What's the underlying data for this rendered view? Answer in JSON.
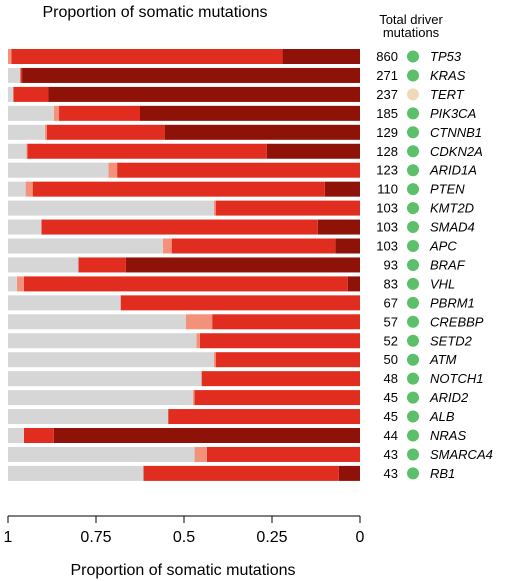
{
  "chart_data": {
    "type": "bar",
    "orientation": "horizontal",
    "stacked": true,
    "title": "Proportion of somatic mutations",
    "xlabel": "Proportion of somatic mutations",
    "right_header_line1": "Total driver",
    "right_header_line2": "mutations",
    "x_axis_reversed": true,
    "xlim": [
      1,
      0
    ],
    "x_ticks": [
      1,
      0.75,
      0.5,
      0.25,
      0
    ],
    "x_tick_labels": [
      "1",
      "0.75",
      "0.5",
      "0.25",
      "0"
    ],
    "segment_order_from_right": [
      "dark_red",
      "red",
      "salmon",
      "light_grey"
    ],
    "colors": {
      "dark_red": "#8e1208",
      "red": "#e02d20",
      "salmon": "#f4917a",
      "light_grey": "#d6d6d6",
      "dot_green": "#5cbf6a",
      "dot_beige": "#f0d9b8"
    },
    "genes": [
      {
        "gene": "TP53",
        "total": "860",
        "dot": "dot_green",
        "dark_red": 0.22,
        "red": 0.77,
        "salmon": 0.01,
        "light_grey": 0.0
      },
      {
        "gene": "KRAS",
        "total": "271",
        "dot": "dot_green",
        "dark_red": 0.96,
        "red": 0.005,
        "salmon": 0.0,
        "light_grey": 0.035
      },
      {
        "gene": "TERT",
        "total": "237",
        "dot": "dot_beige",
        "dark_red": 0.885,
        "red": 0.1,
        "salmon": 0.0,
        "light_grey": 0.015
      },
      {
        "gene": "PIK3CA",
        "total": "185",
        "dot": "dot_green",
        "dark_red": 0.625,
        "red": 0.23,
        "salmon": 0.015,
        "light_grey": 0.13
      },
      {
        "gene": "CTNNB1",
        "total": "129",
        "dot": "dot_green",
        "dark_red": 0.555,
        "red": 0.335,
        "salmon": 0.005,
        "light_grey": 0.105
      },
      {
        "gene": "CDKN2A",
        "total": "128",
        "dot": "dot_green",
        "dark_red": 0.265,
        "red": 0.68,
        "salmon": 0.003,
        "light_grey": 0.052
      },
      {
        "gene": "ARID1A",
        "total": "123",
        "dot": "dot_green",
        "dark_red": 0.0,
        "red": 0.69,
        "salmon": 0.025,
        "light_grey": 0.285
      },
      {
        "gene": "PTEN",
        "total": "110",
        "dot": "dot_green",
        "dark_red": 0.1,
        "red": 0.83,
        "salmon": 0.02,
        "light_grey": 0.05
      },
      {
        "gene": "KMT2D",
        "total": "103",
        "dot": "dot_green",
        "dark_red": 0.0,
        "red": 0.41,
        "salmon": 0.005,
        "light_grey": 0.585
      },
      {
        "gene": "SMAD4",
        "total": "103",
        "dot": "dot_green",
        "dark_red": 0.12,
        "red": 0.785,
        "salmon": 0.0,
        "light_grey": 0.095
      },
      {
        "gene": "APC",
        "total": "103",
        "dot": "dot_green",
        "dark_red": 0.07,
        "red": 0.465,
        "salmon": 0.025,
        "light_grey": 0.44
      },
      {
        "gene": "BRAF",
        "total": "93",
        "dot": "dot_green",
        "dark_red": 0.665,
        "red": 0.135,
        "salmon": 0.0,
        "light_grey": 0.2
      },
      {
        "gene": "VHL",
        "total": "83",
        "dot": "dot_green",
        "dark_red": 0.035,
        "red": 0.92,
        "salmon": 0.02,
        "light_grey": 0.025
      },
      {
        "gene": "PBRM1",
        "total": "67",
        "dot": "dot_green",
        "dark_red": 0.0,
        "red": 0.68,
        "salmon": 0.0,
        "light_grey": 0.32
      },
      {
        "gene": "CREBBP",
        "total": "57",
        "dot": "dot_green",
        "dark_red": 0.0,
        "red": 0.42,
        "salmon": 0.075,
        "light_grey": 0.505
      },
      {
        "gene": "SETD2",
        "total": "52",
        "dot": "dot_green",
        "dark_red": 0.0,
        "red": 0.455,
        "salmon": 0.01,
        "light_grey": 0.535
      },
      {
        "gene": "ATM",
        "total": "50",
        "dot": "dot_green",
        "dark_red": 0.0,
        "red": 0.41,
        "salmon": 0.005,
        "light_grey": 0.585
      },
      {
        "gene": "NOTCH1",
        "total": "48",
        "dot": "dot_green",
        "dark_red": 0.0,
        "red": 0.45,
        "salmon": 0.0,
        "light_grey": 0.55
      },
      {
        "gene": "ARID2",
        "total": "45",
        "dot": "dot_green",
        "dark_red": 0.0,
        "red": 0.47,
        "salmon": 0.005,
        "light_grey": 0.525
      },
      {
        "gene": "ALB",
        "total": "45",
        "dot": "dot_green",
        "dark_red": 0.0,
        "red": 0.545,
        "salmon": 0.0,
        "light_grey": 0.455
      },
      {
        "gene": "NRAS",
        "total": "44",
        "dot": "dot_green",
        "dark_red": 0.87,
        "red": 0.085,
        "salmon": 0.0,
        "light_grey": 0.045
      },
      {
        "gene": "SMARCA4",
        "total": "43",
        "dot": "dot_green",
        "dark_red": 0.0,
        "red": 0.435,
        "salmon": 0.035,
        "light_grey": 0.53
      },
      {
        "gene": "RB1",
        "total": "43",
        "dot": "dot_green",
        "dark_red": 0.06,
        "red": 0.555,
        "salmon": 0.0,
        "light_grey": 0.385
      }
    ]
  }
}
